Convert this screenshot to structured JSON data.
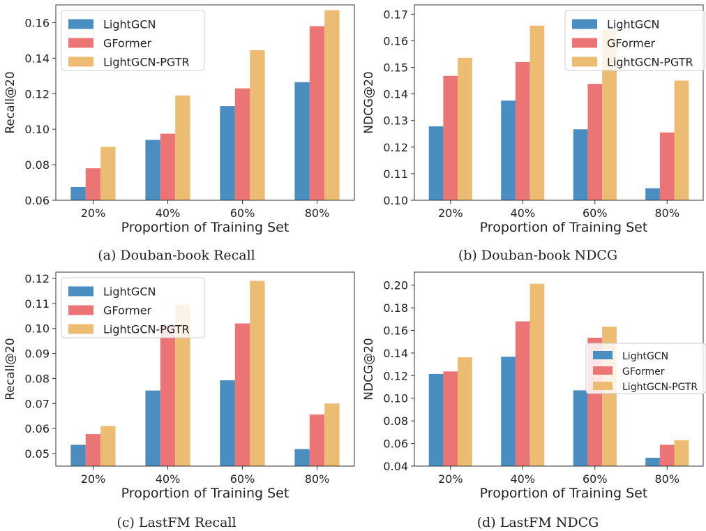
{
  "colors": {
    "LightGCN": "#4a8ec1",
    "GFormer": "#eb7575",
    "LightGCN-PGTR": "#ecbc73"
  },
  "panels": [
    {
      "caption": "(a) Douban-book Recall"
    },
    {
      "caption": "(b) Douban-book NDCG"
    },
    {
      "caption": "(c) LastFM Recall"
    },
    {
      "caption": "(d) LastFM NDCG"
    }
  ],
  "chart_data": [
    {
      "type": "bar",
      "categories": [
        "20%",
        "40%",
        "60%",
        "80%"
      ],
      "series": [
        {
          "name": "LightGCN",
          "values": [
            0.0675,
            0.094,
            0.113,
            0.1265
          ]
        },
        {
          "name": "GFormer",
          "values": [
            0.078,
            0.0975,
            0.123,
            0.158
          ]
        },
        {
          "name": "LightGCN-PGTR",
          "values": [
            0.09,
            0.119,
            0.1445,
            0.167
          ]
        }
      ],
      "xlabel": "Proportion of Training Set",
      "ylabel": "Recall@20",
      "ylim": [
        0.06,
        0.17
      ],
      "yticks": [
        0.06,
        0.08,
        0.1,
        0.12,
        0.14,
        0.16
      ],
      "ytick_labels": [
        "0.06",
        "0.08",
        "0.10",
        "0.12",
        "0.14",
        "0.16"
      ],
      "legend": "top-left",
      "grid": false
    },
    {
      "type": "bar",
      "categories": [
        "20%",
        "40%",
        "60%",
        "80%"
      ],
      "series": [
        {
          "name": "LightGCN",
          "values": [
            0.1278,
            0.1375,
            0.1267,
            0.1045
          ]
        },
        {
          "name": "GFormer",
          "values": [
            0.1468,
            0.152,
            0.1438,
            0.1255
          ]
        },
        {
          "name": "LightGCN-PGTR",
          "values": [
            0.1536,
            0.1657,
            0.164,
            0.145
          ]
        }
      ],
      "xlabel": "Proportion of Training Set",
      "ylabel": "NDCG@20",
      "ylim": [
        0.1,
        0.1735
      ],
      "yticks": [
        0.1,
        0.11,
        0.12,
        0.13,
        0.14,
        0.15,
        0.16,
        0.17
      ],
      "ytick_labels": [
        "0.10",
        "0.11",
        "0.12",
        "0.13",
        "0.14",
        "0.15",
        "0.16",
        "0.17"
      ],
      "legend": "top-right",
      "grid": false
    },
    {
      "type": "bar",
      "categories": [
        "20%",
        "40%",
        "60%",
        "80%"
      ],
      "series": [
        {
          "name": "LightGCN",
          "values": [
            0.0535,
            0.0752,
            0.0793,
            0.0518
          ]
        },
        {
          "name": "GFormer",
          "values": [
            0.0578,
            0.101,
            0.102,
            0.0656
          ]
        },
        {
          "name": "LightGCN-PGTR",
          "values": [
            0.061,
            0.1095,
            0.119,
            0.07
          ]
        }
      ],
      "xlabel": "Proportion of Training Set",
      "ylabel": "Recall@20",
      "ylim": [
        0.045,
        0.1225
      ],
      "yticks": [
        0.05,
        0.06,
        0.07,
        0.08,
        0.09,
        0.1,
        0.11,
        0.12
      ],
      "ytick_labels": [
        "0.05",
        "0.06",
        "0.07",
        "0.08",
        "0.09",
        "0.10",
        "0.11",
        "0.12"
      ],
      "legend": "top-left",
      "grid": false
    },
    {
      "type": "bar",
      "categories": [
        "20%",
        "40%",
        "60%",
        "80%"
      ],
      "series": [
        {
          "name": "LightGCN",
          "values": [
            0.1215,
            0.1367,
            0.107,
            0.0474
          ]
        },
        {
          "name": "GFormer",
          "values": [
            0.1237,
            0.168,
            0.1535,
            0.0588
          ]
        },
        {
          "name": "LightGCN-PGTR",
          "values": [
            0.1362,
            0.2012,
            0.1632,
            0.0628
          ]
        }
      ],
      "xlabel": "Proportion of Training Set",
      "ylabel": "NDCG@20",
      "ylim": [
        0.04,
        0.2115
      ],
      "yticks": [
        0.04,
        0.06,
        0.08,
        0.1,
        0.12,
        0.14,
        0.16,
        0.18,
        0.2
      ],
      "ytick_labels": [
        "0.04",
        "0.06",
        "0.08",
        "0.10",
        "0.12",
        "0.14",
        "0.16",
        "0.18",
        "0.20"
      ],
      "legend": "center-right",
      "grid": false
    }
  ]
}
